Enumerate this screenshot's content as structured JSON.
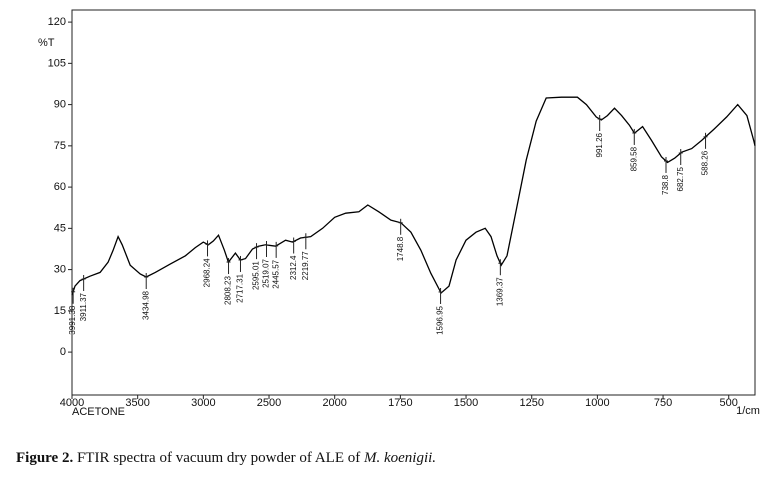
{
  "chart_data": {
    "type": "line",
    "ylabel": "%T",
    "xlabel": "1/cm",
    "x": [
      4000,
      3977,
      3939,
      3863,
      3786,
      3725,
      3687,
      3649,
      3618,
      3557,
      3481,
      3435,
      3366,
      3252,
      3137,
      3061,
      3000,
      2962,
      2924,
      2885,
      2840,
      2809,
      2756,
      2718,
      2679,
      2626,
      2580,
      2527,
      2450,
      2374,
      2321,
      2260,
      2183,
      2092,
      2000,
      1958,
      1908,
      1874,
      1832,
      1786,
      1748,
      1710,
      1672,
      1634,
      1595,
      1565,
      1538,
      1500,
      1462,
      1427,
      1405,
      1382,
      1366,
      1344,
      1309,
      1271,
      1233,
      1195,
      1137,
      1076,
      1042,
      1004,
      985,
      962,
      935,
      908,
      878,
      859,
      828,
      794,
      756,
      733,
      706,
      679,
      641,
      603,
      557,
      508,
      466,
      431,
      405,
      400
    ],
    "series": [
      {
        "name": "ACETONE",
        "color": "#000000",
        "values": [
          20.7,
          24,
          26,
          27.6,
          29,
          32.7,
          37,
          42,
          39,
          31.6,
          28.4,
          27.3,
          29,
          32,
          35,
          38,
          40,
          39,
          40.4,
          42.5,
          37,
          32.7,
          36,
          33.5,
          34,
          37.5,
          38.5,
          39,
          38.5,
          40.7,
          40,
          41.5,
          42,
          45,
          49,
          50.5,
          51,
          53.5,
          51,
          48,
          47,
          43.6,
          37,
          28.7,
          21.5,
          24,
          33.5,
          40.7,
          43.6,
          45,
          42,
          35,
          31.6,
          35,
          51.6,
          69.8,
          84,
          92.4,
          92.7,
          92.7,
          90,
          85.5,
          84.4,
          86,
          88.7,
          86,
          82.5,
          79.6,
          82,
          77,
          71,
          69,
          70.5,
          72.7,
          74,
          77,
          81,
          85.5,
          90,
          86,
          77,
          75
        ]
      }
    ],
    "peaks": [
      3991.38,
      3911.37,
      3434.98,
      2968.24,
      2808.23,
      2717.31,
      2595.01,
      2519.07,
      2445.57,
      2312.4,
      2219.77,
      1748.8,
      1596.95,
      1369.37,
      991.26,
      859.58,
      738.8,
      682.75,
      588.26
    ],
    "xlim": [
      4000,
      400
    ],
    "xticks": [
      4000,
      3500,
      3000,
      2500,
      2000,
      1750,
      1500,
      1250,
      1000,
      750,
      500
    ],
    "ylim": [
      -15.6,
      124.4
    ],
    "yticks": [
      0,
      15,
      30,
      45,
      60,
      75,
      90,
      105,
      120
    ],
    "grid": false
  },
  "caption": {
    "label": "Figure 2.",
    "text": " FTIR spectra of vacuum dry powder of ALE of ",
    "species": "M. koenigii."
  }
}
